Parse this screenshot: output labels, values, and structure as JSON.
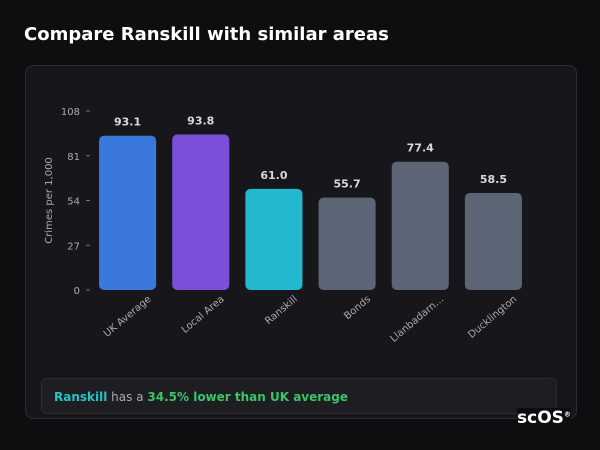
{
  "header": {
    "title": "Compare Ranskill with similar areas"
  },
  "chart_data": {
    "type": "bar",
    "y_label": "Crimes per 1,000",
    "categories": [
      "UK Average",
      "Local Area",
      "Ranskill",
      "Bonds",
      "Llanbadarn…",
      "Ducklington"
    ],
    "values": [
      93.1,
      93.8,
      61.0,
      55.7,
      77.4,
      58.5
    ],
    "value_labels": [
      "93.1",
      "93.8",
      "61.0",
      "55.7",
      "77.4",
      "58.5"
    ],
    "colors": [
      "#3b78dc",
      "#7b4fd8",
      "#22b9d0",
      "#5b6576",
      "#5b6576",
      "#5b6576"
    ],
    "ylim": [
      0,
      108
    ],
    "yticks": [
      0,
      27,
      54,
      81,
      108
    ],
    "grid": false
  },
  "footer": {
    "area": "Ranskill",
    "text": "has a",
    "highlight": "34.5% lower than UK average"
  },
  "logo": {
    "text": "scOS",
    "mark": "®"
  }
}
